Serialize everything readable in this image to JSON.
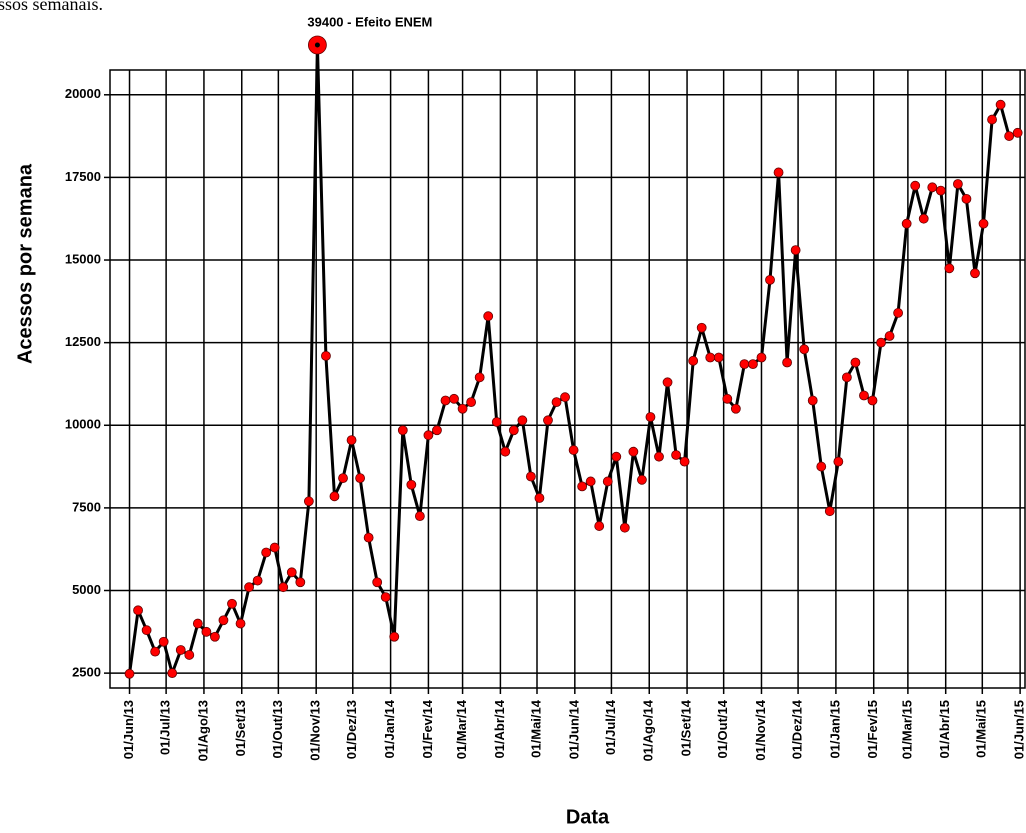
{
  "caption": "acessos semanais.",
  "chart_data": {
    "type": "line",
    "x_label": "Data",
    "y_label": "Acessos por semana",
    "annotation": "39400 - Efeito ENEM",
    "x": [
      "2013-06-01",
      "2013-06-08",
      "2013-06-15",
      "2013-06-22",
      "2013-06-29",
      "2013-07-06",
      "2013-07-13",
      "2013-07-20",
      "2013-07-27",
      "2013-08-03",
      "2013-08-10",
      "2013-08-17",
      "2013-08-24",
      "2013-08-31",
      "2013-09-07",
      "2013-09-14",
      "2013-09-21",
      "2013-09-28",
      "2013-10-05",
      "2013-10-12",
      "2013-10-19",
      "2013-10-26",
      "2013-11-02",
      "2013-11-09",
      "2013-11-16",
      "2013-11-23",
      "2013-11-30",
      "2013-12-07",
      "2013-12-14",
      "2013-12-21",
      "2013-12-28",
      "2014-01-04",
      "2014-01-11",
      "2014-01-18",
      "2014-01-25",
      "2014-02-01",
      "2014-02-08",
      "2014-02-15",
      "2014-02-22",
      "2014-03-01",
      "2014-03-08",
      "2014-03-15",
      "2014-03-22",
      "2014-03-29",
      "2014-04-05",
      "2014-04-12",
      "2014-04-19",
      "2014-04-26",
      "2014-05-03",
      "2014-05-10",
      "2014-05-17",
      "2014-05-24",
      "2014-05-31",
      "2014-06-07",
      "2014-06-14",
      "2014-06-21",
      "2014-06-28",
      "2014-07-05",
      "2014-07-12",
      "2014-07-19",
      "2014-07-26",
      "2014-08-02",
      "2014-08-09",
      "2014-08-16",
      "2014-08-23",
      "2014-08-30",
      "2014-09-06",
      "2014-09-13",
      "2014-09-20",
      "2014-09-27",
      "2014-10-04",
      "2014-10-11",
      "2014-10-18",
      "2014-10-25",
      "2014-11-01",
      "2014-11-08",
      "2014-11-15",
      "2014-11-22",
      "2014-11-29",
      "2014-12-06",
      "2014-12-13",
      "2014-12-20",
      "2014-12-27",
      "2015-01-03",
      "2015-01-10",
      "2015-01-17",
      "2015-01-24",
      "2015-01-31",
      "2015-02-07",
      "2015-02-14",
      "2015-02-21",
      "2015-02-28",
      "2015-03-07",
      "2015-03-14",
      "2015-03-21",
      "2015-03-28",
      "2015-04-04",
      "2015-04-11",
      "2015-04-18",
      "2015-04-25",
      "2015-05-02",
      "2015-05-09",
      "2015-05-16",
      "2015-05-23",
      "2015-05-30"
    ],
    "series": [
      {
        "name": "Acessos",
        "color": "#000000",
        "marker_color": "#ff0000",
        "values": [
          2480,
          4400,
          3800,
          3150,
          3450,
          2500,
          3200,
          3050,
          4000,
          3750,
          3600,
          4100,
          4600,
          4000,
          5100,
          5300,
          6150,
          6300,
          5100,
          5550,
          5250,
          7700,
          39400,
          12100,
          7850,
          8400,
          9550,
          8400,
          6600,
          5250,
          4800,
          3600,
          9850,
          8200,
          7250,
          9700,
          9850,
          10750,
          10800,
          10500,
          10700,
          11450,
          13300,
          10100,
          9200,
          9850,
          10150,
          8450,
          7800,
          10150,
          10700,
          10850,
          9250,
          8150,
          8300,
          6950,
          8300,
          9050,
          6900,
          9200,
          8350,
          10250,
          9050,
          11300,
          9100,
          8900,
          11950,
          12950,
          12050,
          12050,
          10800,
          10500,
          11850,
          11850,
          12050,
          14400,
          17650,
          11900,
          15300,
          12300,
          10750,
          8750,
          7400,
          8900,
          11450,
          11900,
          10900,
          10750,
          12500,
          12700,
          13400,
          16100,
          17250,
          16250,
          17200,
          17100,
          14750,
          17300,
          16850,
          14600,
          16100,
          19250,
          19700,
          18750,
          18850
        ]
      }
    ],
    "xlim": [
      "2013-05-16",
      "2015-06-05"
    ],
    "xticks": [
      {
        "value": "2013-06-01",
        "label": "01/Jun/13"
      },
      {
        "value": "2013-07-01",
        "label": "01/Jul/13"
      },
      {
        "value": "2013-08-01",
        "label": "01/Ago/13"
      },
      {
        "value": "2013-09-01",
        "label": "01/Set/13"
      },
      {
        "value": "2013-10-01",
        "label": "01/Out/13"
      },
      {
        "value": "2013-11-01",
        "label": "01/Nov/13"
      },
      {
        "value": "2013-12-01",
        "label": "01/Dez/13"
      },
      {
        "value": "2014-01-01",
        "label": "01/Jan/14"
      },
      {
        "value": "2014-02-01",
        "label": "01/Fev/14"
      },
      {
        "value": "2014-03-01",
        "label": "01/Mar/14"
      },
      {
        "value": "2014-04-01",
        "label": "01/Abr/14"
      },
      {
        "value": "2014-05-01",
        "label": "01/Mai/14"
      },
      {
        "value": "2014-06-01",
        "label": "01/Jun/14"
      },
      {
        "value": "2014-07-01",
        "label": "01/Jul/14"
      },
      {
        "value": "2014-08-01",
        "label": "01/Ago/14"
      },
      {
        "value": "2014-09-01",
        "label": "01/Set/14"
      },
      {
        "value": "2014-10-01",
        "label": "01/Out/14"
      },
      {
        "value": "2014-11-01",
        "label": "01/Nov/14"
      },
      {
        "value": "2014-12-01",
        "label": "01/Dez/14"
      },
      {
        "value": "2015-01-01",
        "label": "01/Jan/15"
      },
      {
        "value": "2015-02-01",
        "label": "01/Fev/15"
      },
      {
        "value": "2015-03-01",
        "label": "01/Mar/15"
      },
      {
        "value": "2015-04-01",
        "label": "01/Abr/15"
      },
      {
        "value": "2015-05-01",
        "label": "01/Mai/15"
      },
      {
        "value": "2015-06-01",
        "label": "01/Jun/15"
      }
    ],
    "ylim": [
      2050,
      20750
    ],
    "yticks": [
      2500,
      5000,
      7500,
      10000,
      12500,
      15000,
      17500,
      20000
    ],
    "grid": true
  }
}
